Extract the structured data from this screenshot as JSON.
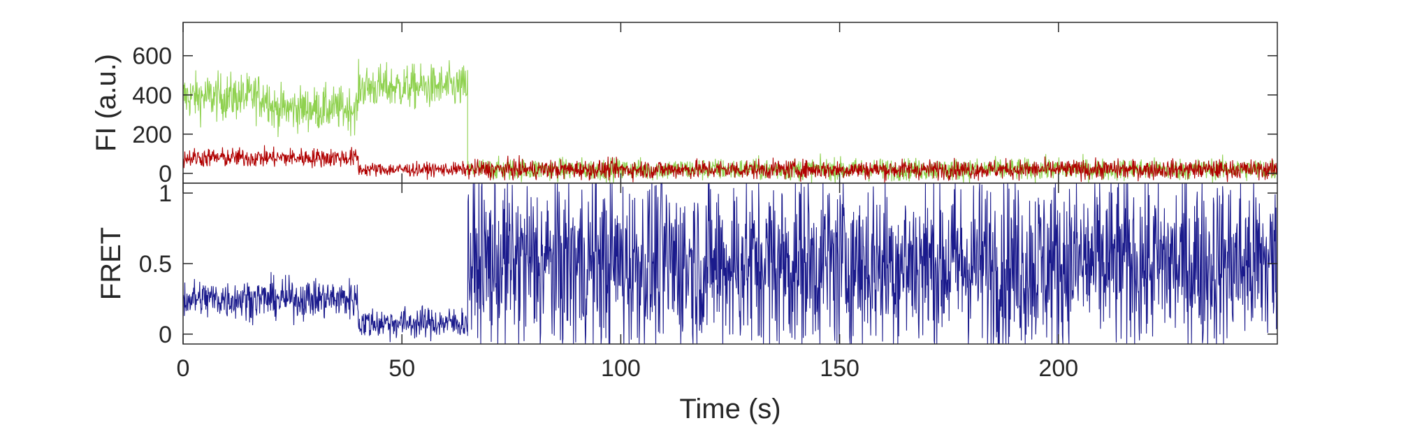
{
  "chart_data": [
    {
      "id": "fluorescence",
      "type": "line",
      "ylabel": "FI (a.u.)",
      "xlim": [
        0,
        250
      ],
      "ylim": [
        -50,
        770
      ],
      "yticks": [
        0,
        200,
        400,
        600
      ],
      "ytick_labels": [
        "0",
        "200",
        "400",
        "600"
      ],
      "series": [
        {
          "color": "#8fd14f",
          "segments": [
            {
              "t0": 0,
              "t1": 20,
              "mean": 390,
              "noise": 85
            },
            {
              "t0": 20,
              "t1": 40,
              "mean": 330,
              "noise": 80
            },
            {
              "t0": 40,
              "t1": 65,
              "mean": 440,
              "noise": 80
            },
            {
              "t0": 65,
              "t1": 250,
              "mean": 20,
              "noise": 40
            }
          ]
        },
        {
          "color": "#b00000",
          "segments": [
            {
              "t0": 0,
              "t1": 40,
              "mean": 80,
              "noise": 35
            },
            {
              "t0": 40,
              "t1": 65,
              "mean": 20,
              "noise": 25
            },
            {
              "t0": 65,
              "t1": 250,
              "mean": 20,
              "noise": 35
            }
          ]
        }
      ]
    },
    {
      "id": "fret",
      "type": "line",
      "xlabel": "Time (s)",
      "ylabel": "FRET",
      "xlim": [
        0,
        250
      ],
      "ylim": [
        -0.07,
        1.07
      ],
      "xticks": [
        0,
        50,
        100,
        150,
        200
      ],
      "xtick_labels": [
        "0",
        "50",
        "100",
        "150",
        "200"
      ],
      "yticks": [
        0,
        0.5,
        1
      ],
      "ytick_labels": [
        "0",
        "0.5",
        "1"
      ],
      "series": [
        {
          "color": "#1a1a8c",
          "segments": [
            {
              "t0": 0,
              "t1": 40,
              "mean": 0.25,
              "noise": 0.1
            },
            {
              "t0": 40,
              "t1": 65,
              "mean": 0.08,
              "noise": 0.08
            },
            {
              "t0": 65,
              "t1": 250,
              "mean": 0.5,
              "noise": 0.45
            }
          ]
        }
      ]
    }
  ]
}
